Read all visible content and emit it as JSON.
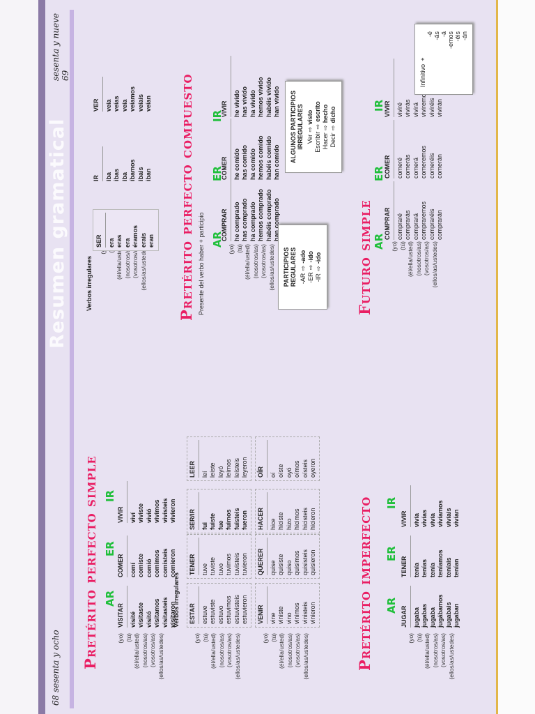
{
  "header": {
    "title": "Resumen gramatical"
  },
  "page_left": "68 sesenta y ocho",
  "page_right": "sesenta y nueve 69",
  "pronouns": [
    "(yo)",
    "(tú)",
    "(él/ella/usted)",
    "(nosotros/as)",
    "(vosotros/as)",
    "(ellos/as/ustedes)"
  ],
  "tags": {
    "ar": "AR",
    "er": "ER",
    "ir": "IR"
  },
  "preterito_simple": {
    "title": "Pretérito perfecto simple",
    "regular": [
      {
        "head": "VISITAR",
        "forms": [
          "visité",
          "visitaste",
          "visitó",
          "visitamos",
          "visitasteis",
          "visitaron"
        ]
      },
      {
        "head": "COMER",
        "forms": [
          "comí",
          "comiste",
          "comió",
          "comimos",
          "comisteis",
          "comieron"
        ]
      },
      {
        "head": "VIVIR",
        "forms": [
          "viví",
          "viviste",
          "vivió",
          "vivimos",
          "vivisteis",
          "vivieron"
        ]
      }
    ],
    "irregular_label": "Verbos irregulares",
    "irregular_row1": [
      {
        "head": "ESTAR",
        "forms": [
          "estuve",
          "estuviste",
          "estuvo",
          "estuvimos",
          "estuvisteis",
          "estuvieron"
        ]
      },
      {
        "head": "TENER",
        "forms": [
          "tuve",
          "tuviste",
          "tuvo",
          "tuvimos",
          "tuvisteis",
          "tuvieron"
        ]
      },
      {
        "head": "SER/IR",
        "forms": [
          "fui",
          "fuiste",
          "fue",
          "fuimos",
          "fuisteis",
          "fueron"
        ]
      },
      {
        "head": "LEER",
        "forms": [
          "leí",
          "leíste",
          "leyó",
          "leímos",
          "leísteis",
          "leyeron"
        ]
      }
    ],
    "irregular_row2": [
      {
        "head": "VENIR",
        "forms": [
          "vine",
          "viniste",
          "vino",
          "vinimos",
          "vinisteis",
          "vinieron"
        ]
      },
      {
        "head": "QUERER",
        "forms": [
          "quise",
          "quisiste",
          "quiso",
          "quisimos",
          "quisisteis",
          "quisieron"
        ]
      },
      {
        "head": "HACER",
        "forms": [
          "hice",
          "hiciste",
          "hizo",
          "hicimos",
          "hicisteis",
          "hicieron"
        ]
      },
      {
        "head": "OÍR",
        "forms": [
          "oí",
          "oíste",
          "oyó",
          "oímos",
          "oísteis",
          "oyeron"
        ]
      }
    ]
  },
  "imperfecto": {
    "title": "Pretérito imperfecto",
    "regular": [
      {
        "head": "JUGAR",
        "forms": [
          "jugaba",
          "jugabas",
          "jugaba",
          "jugábamos",
          "jugabais",
          "jugaban"
        ]
      },
      {
        "head": "TENER",
        "forms": [
          "tenía",
          "tenías",
          "tenía",
          "teníamos",
          "teníais",
          "tenían"
        ]
      },
      {
        "head": "VIVIR",
        "forms": [
          "vivía",
          "vivías",
          "vivía",
          "vivíamos",
          "vivíais",
          "vivían"
        ]
      }
    ],
    "irregular_label": "Verbos irregulares",
    "irregular": [
      {
        "head": "SER",
        "forms": [
          "era",
          "eras",
          "era",
          "éramos",
          "erais",
          "eran"
        ]
      },
      {
        "head": "IR",
        "forms": [
          "iba",
          "ibas",
          "iba",
          "íbamos",
          "ibais",
          "iban"
        ]
      },
      {
        "head": "VER",
        "forms": [
          "veía",
          "veías",
          "veía",
          "veíamos",
          "veíais",
          "veían"
        ]
      }
    ]
  },
  "compuesto": {
    "title": "Pretérito perfecto compuesto",
    "subtitle": "Presente del verbo haber + participio",
    "regular": [
      {
        "head": "COMPRAR",
        "forms": [
          "he comprado",
          "has comprado",
          "ha comprado",
          "hemos comprado",
          "habéis comprado",
          "han comprado"
        ]
      },
      {
        "head": "COMER",
        "forms": [
          "he comido",
          "has comido",
          "ha comido",
          "hemos comido",
          "habéis comido",
          "han comido"
        ]
      },
      {
        "head": "VIVIR",
        "forms": [
          "he vivido",
          "has vivido",
          "ha vivido",
          "hemos vivido",
          "habéis vivido",
          "han vivido"
        ]
      }
    ],
    "participios_regulares": {
      "title": "PARTICIPIOS REGULARES",
      "rows": [
        [
          "-AR",
          "⇨",
          "-ado"
        ],
        [
          "-ER",
          "⇨",
          "-ido"
        ],
        [
          "-IR",
          "⇨",
          "-ido"
        ]
      ]
    },
    "participios_irregulares": {
      "title": "ALGUNOS PARTICIPIOS IRREGULARES",
      "rows": [
        [
          "Ver",
          "⇨",
          "visto"
        ],
        [
          "Escribir",
          "⇨",
          "escrito"
        ],
        [
          "Hacer",
          "⇨",
          "hecho"
        ],
        [
          "Decir",
          "⇨",
          "dicho"
        ]
      ]
    }
  },
  "futuro": {
    "title": "Futuro simple",
    "regular": [
      {
        "head": "COMPRAR",
        "forms": [
          "compraré",
          "comprarás",
          "comprará",
          "compraremos",
          "compraréis",
          "comprarán"
        ]
      },
      {
        "head": "COMER",
        "forms": [
          "comeré",
          "comerás",
          "comerá",
          "comeremos",
          "comeréis",
          "comerán"
        ]
      },
      {
        "head": "VIVIR",
        "forms": [
          "viviré",
          "vivirás",
          "vivirá",
          "viviremos",
          "viviréis",
          "vivirán"
        ]
      }
    ],
    "rule": {
      "left": "Infinitivo",
      "plus": "+",
      "endings": [
        "-é",
        "-ás",
        "-á",
        "-emos",
        "-éis",
        "-án"
      ]
    }
  }
}
